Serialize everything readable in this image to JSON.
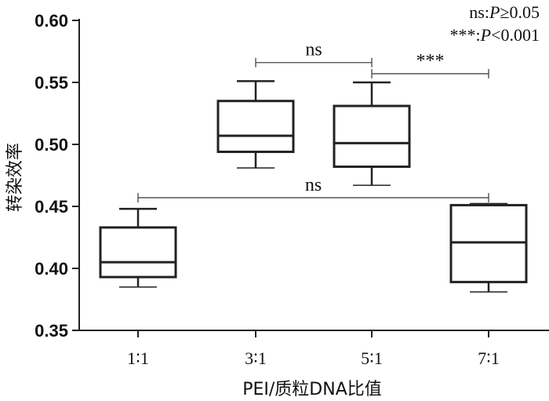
{
  "chart_data": {
    "type": "box",
    "xlabel": "PEI/质粒DNA比值",
    "ylabel": "转染效率",
    "ylim": [
      0.35,
      0.6
    ],
    "yticks": [
      "0.35",
      "0.40",
      "0.45",
      "0.50",
      "0.55",
      "0.60"
    ],
    "ytick_values": [
      0.35,
      0.4,
      0.45,
      0.5,
      0.55,
      0.6
    ],
    "categories": [
      "1∶1",
      "3∶1",
      "5∶1",
      "7∶1"
    ],
    "boxes": [
      {
        "min": 0.385,
        "q1": 0.393,
        "median": 0.405,
        "q3": 0.433,
        "max": 0.448
      },
      {
        "min": 0.481,
        "q1": 0.494,
        "median": 0.507,
        "q3": 0.535,
        "max": 0.551
      },
      {
        "min": 0.467,
        "q1": 0.482,
        "median": 0.501,
        "q3": 0.531,
        "max": 0.55
      },
      {
        "min": 0.381,
        "q1": 0.389,
        "median": 0.421,
        "q3": 0.451,
        "max": 0.452
      }
    ],
    "comparisons": [
      {
        "from": 1,
        "to": 2,
        "y": 0.566,
        "label": "ns"
      },
      {
        "from": 2,
        "to": 3,
        "y": 0.557,
        "label": "***"
      },
      {
        "from": 0,
        "to": 3,
        "y": 0.457,
        "label": "ns"
      }
    ],
    "legend": {
      "line1_prefix": "ns:",
      "line1_p": "P",
      "line1_suffix": "≥0.05",
      "line2_prefix": "***:",
      "line2_p": "P",
      "line2_suffix": "<0.001"
    }
  }
}
